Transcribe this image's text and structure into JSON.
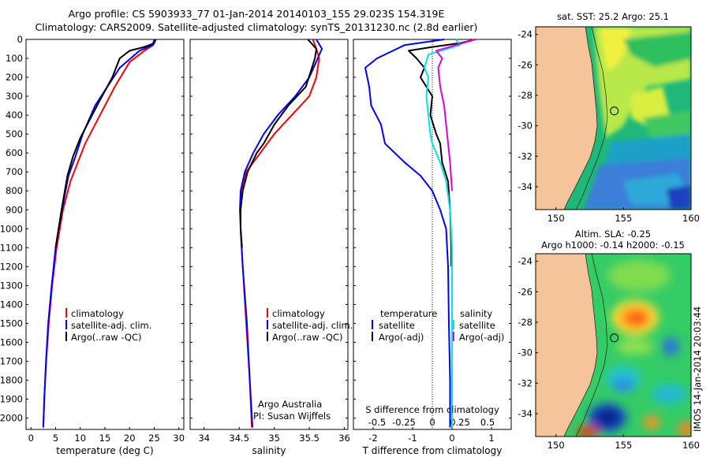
{
  "header": {
    "line1": "Argo profile: CS 5903933_77 01-Jan-2014 20140103_155 29.023S 154.319E",
    "line2": "Climatology: CARS2009. Satellite-adjusted climatology: synTS_20131230.nc (2.8d earlier)"
  },
  "stamp": "IMOS 14-Jan-2014 20:03:44",
  "colors": {
    "climatology": "#ff0000",
    "satellite": "#0000ff",
    "argo": "#000000",
    "sal_satellite": "#00e5e5",
    "sal_argo": "#e000e0",
    "land": "#f5c49a"
  },
  "chart_data": [
    {
      "type": "line",
      "id": "temperature",
      "xlabel": "temperature (deg C)",
      "ylabel": "",
      "xlim": [
        -1,
        31
      ],
      "ylim": [
        2060,
        0
      ],
      "xticks": [
        0,
        5,
        10,
        15,
        20,
        25,
        30
      ],
      "yticks": [
        0,
        100,
        200,
        300,
        400,
        500,
        600,
        700,
        800,
        900,
        1000,
        1100,
        1200,
        1300,
        1400,
        1500,
        1600,
        1700,
        1800,
        1900,
        2000
      ],
      "legend": [
        "climatology",
        "satellite-adj. clim.",
        "Argo(..raw -QC)"
      ],
      "series": [
        {
          "name": "climatology",
          "color": "#ff0000",
          "points": [
            [
              25,
              0
            ],
            [
              24.8,
              30
            ],
            [
              23,
              60
            ],
            [
              20,
              120
            ],
            [
              17,
              250
            ],
            [
              14,
              400
            ],
            [
              11,
              550
            ],
            [
              9.5,
              650
            ],
            [
              8,
              750
            ],
            [
              6.5,
              900
            ],
            [
              5.2,
              1100
            ],
            [
              4.3,
              1300
            ],
            [
              3.6,
              1500
            ],
            [
              3.1,
              1700
            ],
            [
              2.7,
              1900
            ],
            [
              2.5,
              2050
            ]
          ]
        },
        {
          "name": "satellite-adj. clim.",
          "color": "#0000ff",
          "points": [
            [
              25,
              0
            ],
            [
              24.7,
              30
            ],
            [
              22,
              60
            ],
            [
              18,
              150
            ],
            [
              15.5,
              250
            ],
            [
              13,
              350
            ],
            [
              10.5,
              500
            ],
            [
              9,
              620
            ],
            [
              7.6,
              720
            ],
            [
              6.3,
              900
            ],
            [
              5,
              1100
            ],
            [
              4.2,
              1300
            ],
            [
              3.5,
              1500
            ],
            [
              3.05,
              1700
            ],
            [
              2.7,
              1900
            ],
            [
              2.5,
              2050
            ]
          ]
        },
        {
          "name": "Argo(..raw -QC)",
          "color": "#000000",
          "points": [
            [
              25.3,
              0
            ],
            [
              25,
              20
            ],
            [
              23,
              40
            ],
            [
              20,
              60
            ],
            [
              18,
              100
            ],
            [
              16.5,
              200
            ],
            [
              14,
              320
            ],
            [
              12,
              420
            ],
            [
              10,
              520
            ],
            [
              8.5,
              620
            ],
            [
              7.4,
              720
            ],
            [
              6.2,
              900
            ],
            [
              5,
              1100
            ]
          ]
        }
      ]
    },
    {
      "type": "line",
      "id": "salinity",
      "xlabel": "salinity",
      "ylabel": "",
      "xlim": [
        33.8,
        36.05
      ],
      "ylim": [
        2060,
        0
      ],
      "xticks": [
        34,
        34.5,
        35,
        35.5,
        36
      ],
      "legend": [
        "climatology",
        "satellite-adj. clim.",
        "Argo(..raw -QC)"
      ],
      "credit1": "Argo Australia",
      "credit2": "PI: Susan Wijffels",
      "series": [
        {
          "name": "climatology",
          "color": "#ff0000",
          "points": [
            [
              35.55,
              0
            ],
            [
              35.6,
              50
            ],
            [
              35.64,
              100
            ],
            [
              35.6,
              200
            ],
            [
              35.5,
              300
            ],
            [
              35.25,
              400
            ],
            [
              35,
              500
            ],
            [
              34.8,
              600
            ],
            [
              34.6,
              700
            ],
            [
              34.53,
              800
            ],
            [
              34.52,
              900
            ],
            [
              34.52,
              1000
            ],
            [
              34.55,
              1200
            ],
            [
              34.6,
              1500
            ],
            [
              34.65,
              1800
            ],
            [
              34.68,
              2050
            ]
          ]
        },
        {
          "name": "satellite-adj. clim.",
          "color": "#0000ff",
          "points": [
            [
              35.6,
              0
            ],
            [
              35.68,
              50
            ],
            [
              35.62,
              100
            ],
            [
              35.5,
              200
            ],
            [
              35.3,
              300
            ],
            [
              35.05,
              400
            ],
            [
              34.85,
              500
            ],
            [
              34.7,
              600
            ],
            [
              34.58,
              700
            ],
            [
              34.52,
              800
            ],
            [
              34.51,
              900
            ],
            [
              34.52,
              1000
            ],
            [
              34.55,
              1200
            ],
            [
              34.61,
              1500
            ],
            [
              34.65,
              1800
            ],
            [
              34.69,
              2050
            ]
          ]
        },
        {
          "name": "Argo(..raw -QC)",
          "color": "#000000",
          "points": [
            [
              35.48,
              0
            ],
            [
              35.6,
              50
            ],
            [
              35.58,
              100
            ],
            [
              35.45,
              250
            ],
            [
              35.2,
              350
            ],
            [
              35,
              450
            ],
            [
              34.85,
              550
            ],
            [
              34.75,
              600
            ],
            [
              34.62,
              700
            ],
            [
              34.55,
              800
            ],
            [
              34.52,
              900
            ],
            [
              34.52,
              1000
            ],
            [
              34.54,
              1100
            ]
          ]
        }
      ]
    },
    {
      "type": "line",
      "id": "difference",
      "xlabel": "T difference from climatology",
      "xlabel2": "S difference from climatology",
      "xlim": [
        -2.5,
        1.5
      ],
      "ylim": [
        2060,
        0
      ],
      "xticks": [
        -2,
        -1,
        0,
        1
      ],
      "s_ticks": [
        "-0.5",
        "-0.25",
        "0",
        "0.25",
        "0.5"
      ],
      "legend_temp_title": "temperature",
      "legend_sal_title": "salinity",
      "legend": [
        "satellite",
        "Argo(-adj)",
        "satellite",
        "Argo(-adj)"
      ],
      "series": [
        {
          "name": "temperature satellite",
          "color": "#0000ff",
          "points": [
            [
              -0.2,
              0
            ],
            [
              -1.2,
              30
            ],
            [
              -1.9,
              100
            ],
            [
              -2.2,
              150
            ],
            [
              -2.1,
              250
            ],
            [
              -2.05,
              350
            ],
            [
              -1.8,
              450
            ],
            [
              -1.7,
              550
            ],
            [
              -1.2,
              650
            ],
            [
              -0.8,
              720
            ],
            [
              -0.5,
              800
            ],
            [
              -0.3,
              900
            ],
            [
              -0.15,
              1000
            ],
            [
              -0.1,
              1200
            ],
            [
              -0.08,
              1500
            ],
            [
              -0.05,
              1800
            ],
            [
              -0.05,
              2050
            ]
          ]
        },
        {
          "name": "temperature Argo(-adj)",
          "color": "#000000",
          "points": [
            [
              0.6,
              0
            ],
            [
              0.2,
              20
            ],
            [
              -0.5,
              40
            ],
            [
              -1.1,
              60
            ],
            [
              -0.9,
              100
            ],
            [
              -0.7,
              150
            ],
            [
              -0.8,
              200
            ],
            [
              -0.5,
              300
            ],
            [
              -0.55,
              400
            ],
            [
              -0.4,
              500
            ],
            [
              -0.3,
              550
            ],
            [
              -0.25,
              650
            ],
            [
              -0.1,
              750
            ],
            [
              -0.05,
              900
            ],
            [
              -0.02,
              1100
            ],
            [
              -0.02,
              1200
            ]
          ]
        },
        {
          "name": "salinity satellite",
          "color": "#00e5e5",
          "points": [
            [
              0.1,
              0
            ],
            [
              0.2,
              30
            ],
            [
              -0.6,
              80
            ],
            [
              -0.7,
              150
            ],
            [
              -0.6,
              200
            ],
            [
              -0.65,
              300
            ],
            [
              -0.6,
              400
            ],
            [
              -0.55,
              500
            ],
            [
              -0.5,
              550
            ],
            [
              -0.3,
              650
            ],
            [
              -0.15,
              750
            ],
            [
              -0.05,
              900
            ],
            [
              0,
              1100
            ],
            [
              0,
              1500
            ],
            [
              0,
              2050
            ]
          ]
        },
        {
          "name": "salinity Argo(-adj)",
          "color": "#e000e0",
          "points": [
            [
              0.6,
              0
            ],
            [
              0.1,
              30
            ],
            [
              -0.4,
              60
            ],
            [
              -0.25,
              100
            ],
            [
              -0.35,
              150
            ],
            [
              -0.3,
              250
            ],
            [
              -0.2,
              350
            ],
            [
              -0.15,
              450
            ],
            [
              -0.1,
              550
            ],
            [
              -0.05,
              650
            ],
            [
              0,
              800
            ]
          ]
        }
      ]
    },
    {
      "type": "heatmap",
      "id": "sst-map",
      "title": "sat. SST: 25.2  Argo: 25.1",
      "xlim": [
        148.5,
        160
      ],
      "ylim": [
        -35.5,
        -23.5
      ],
      "xticks": [
        150,
        155,
        160
      ],
      "yticks": [
        -24,
        -26,
        -28,
        -30,
        -32,
        -34
      ],
      "float_position": [
        154.319,
        -29.023
      ]
    },
    {
      "type": "heatmap",
      "id": "sla-map",
      "title": "Altim. SLA: -0.25",
      "subtitle": "Argo h1000: -0.14 h2000: -0.15",
      "xlim": [
        148.5,
        160
      ],
      "ylim": [
        -35.5,
        -23.5
      ],
      "xticks": [
        150,
        155,
        160
      ],
      "yticks": [
        -24,
        -26,
        -28,
        -30,
        -32,
        -34
      ],
      "float_position": [
        154.319,
        -29.023
      ]
    }
  ]
}
